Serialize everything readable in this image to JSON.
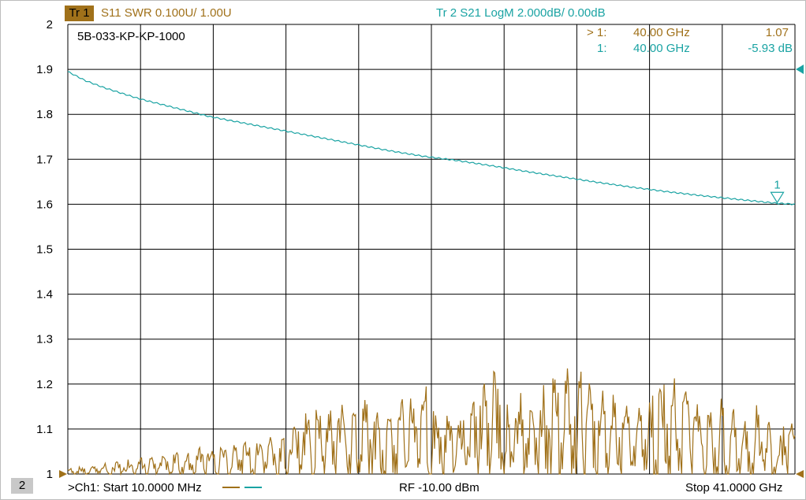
{
  "traces": {
    "tr1": {
      "badge": "Tr  1",
      "label": "S11 SWR 0.100U/  1.00U",
      "color": "#a0711a"
    },
    "tr2": {
      "label": "Tr  2   S21 LogM 2.000dB/  0.00dB",
      "color": "#1aa3a3"
    }
  },
  "device_label": "5B-033-KP-KP-1000",
  "markers": {
    "tr1": {
      "id": "> 1:",
      "freq": "40.00 GHz",
      "value": "1.07"
    },
    "tr2": {
      "id": "1:",
      "freq": "40.00 GHz",
      "value": "-5.93 dB"
    },
    "flag_label": "1"
  },
  "footer": {
    "channel_badge": "2",
    "start": ">Ch1:  Start   10.0000 MHz",
    "rf": "RF  -10.00 dBm",
    "stop": "Stop  41.0000 GHz"
  },
  "colors": {
    "swr": "#a0711a",
    "s21": "#1aa3a3",
    "grid": "#000000",
    "background": "#ffffff"
  },
  "chart_data": {
    "type": "line",
    "x_start_ghz": 0.01,
    "x_stop_ghz": 41.0,
    "x_divisions": 10,
    "ylim": [
      1.0,
      2.0
    ],
    "y_ticks": [
      "2",
      "1.9",
      "1.8",
      "1.7",
      "1.6",
      "1.5",
      "1.4",
      "1.3",
      "1.2",
      "1.1",
      "1"
    ],
    "grid": true,
    "series": [
      {
        "name": "S11 SWR",
        "x": [
          0.01,
          2,
          4,
          6,
          8,
          10,
          12,
          14,
          16,
          18,
          20,
          22,
          24,
          26,
          28,
          30,
          32,
          34,
          36,
          38,
          40,
          41
        ],
        "values": [
          1.0,
          1.01,
          1.02,
          1.03,
          1.04,
          1.05,
          1.06,
          1.12,
          1.14,
          1.11,
          1.16,
          1.09,
          1.18,
          1.13,
          1.2,
          1.15,
          1.1,
          1.17,
          1.12,
          1.14,
          1.07,
          1.11
        ]
      },
      {
        "name": "S21 LogM",
        "x": [
          0.01,
          1,
          2,
          4,
          6,
          8,
          10,
          12,
          14,
          16,
          18,
          20,
          22,
          24,
          26,
          28,
          30,
          32,
          34,
          36,
          38,
          40,
          41
        ],
        "values": [
          1.895,
          1.875,
          1.86,
          1.835,
          1.815,
          1.795,
          1.78,
          1.765,
          1.75,
          1.735,
          1.72,
          1.707,
          1.697,
          1.685,
          1.672,
          1.66,
          1.648,
          1.637,
          1.627,
          1.618,
          1.61,
          1.602,
          1.6
        ]
      }
    ]
  }
}
